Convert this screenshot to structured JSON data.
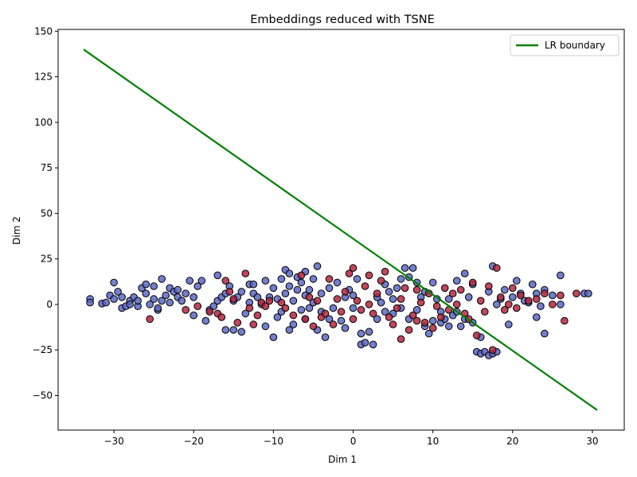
{
  "chart_data": {
    "type": "scatter",
    "title": "Embeddings reduced with TSNE",
    "xlabel": "Dim 1",
    "ylabel": "Dim 2",
    "xlim": [
      -37,
      34
    ],
    "ylim": [
      -69,
      151
    ],
    "xticks": [
      -30,
      -20,
      -10,
      0,
      10,
      20,
      30
    ],
    "yticks": [
      -50,
      -25,
      0,
      25,
      50,
      75,
      100,
      125,
      150
    ],
    "grid": false,
    "legend_position": "top-right",
    "legend": [
      {
        "label": "LR boundary",
        "color": "#008000"
      }
    ],
    "boundary_line": {
      "name": "LR boundary",
      "x": [
        -33.8,
        30.6
      ],
      "y": [
        140,
        -58
      ],
      "color": "#008000"
    },
    "class_colors": {
      "blue": "#5a67c4",
      "red": "#b3273f"
    },
    "series": [
      {
        "color_key": "blue",
        "points": [
          [
            -33,
            3
          ],
          [
            -33,
            1
          ],
          [
            -31.5,
            0.5
          ],
          [
            -31,
            1
          ],
          [
            -30.5,
            5
          ],
          [
            -30,
            3
          ],
          [
            -30,
            12
          ],
          [
            -29.5,
            7
          ],
          [
            -29,
            4
          ],
          [
            -29,
            -2
          ],
          [
            -28.5,
            -1
          ],
          [
            -28,
            2
          ],
          [
            -28,
            0
          ],
          [
            -27.5,
            4
          ],
          [
            -27,
            -1
          ],
          [
            -27,
            2
          ],
          [
            -26.5,
            9
          ],
          [
            -26,
            6
          ],
          [
            -26,
            11
          ],
          [
            -25.5,
            0
          ],
          [
            -25,
            10
          ],
          [
            -25,
            3
          ],
          [
            -24.5,
            -3
          ],
          [
            -24.5,
            -2
          ],
          [
            -24,
            14
          ],
          [
            -24,
            2
          ],
          [
            -23.5,
            5
          ],
          [
            -23,
            9
          ],
          [
            -23,
            1
          ],
          [
            -22.5,
            7
          ],
          [
            -22,
            4
          ],
          [
            -22,
            8
          ],
          [
            -21.5,
            2
          ],
          [
            -21,
            6
          ],
          [
            -20.5,
            13
          ],
          [
            -20,
            4
          ],
          [
            -20,
            -6
          ],
          [
            -19.5,
            10
          ],
          [
            -19,
            13
          ],
          [
            -18.5,
            -9
          ],
          [
            -18,
            -3
          ],
          [
            -17.5,
            -1
          ],
          [
            -17,
            2
          ],
          [
            -17,
            16
          ],
          [
            -16.5,
            4
          ],
          [
            -16,
            -14
          ],
          [
            -16,
            6
          ],
          [
            -15.5,
            10
          ],
          [
            -15,
            -14
          ],
          [
            -15,
            2
          ],
          [
            -14.5,
            4
          ],
          [
            -14,
            -15
          ],
          [
            -14,
            7
          ],
          [
            -13.5,
            -5
          ],
          [
            -13,
            1
          ],
          [
            -13,
            11
          ],
          [
            -12.5,
            6
          ],
          [
            -12.5,
            11
          ],
          [
            -12,
            4
          ],
          [
            -11.5,
            0
          ],
          [
            -11,
            -12
          ],
          [
            -11,
            13
          ],
          [
            -10.5,
            4
          ],
          [
            -10,
            9
          ],
          [
            -10,
            -18
          ],
          [
            -9.5,
            -7
          ],
          [
            -9.5,
            3
          ],
          [
            -9,
            -4
          ],
          [
            -9,
            14
          ],
          [
            -8.5,
            19
          ],
          [
            -8.5,
            6
          ],
          [
            -8,
            10
          ],
          [
            -8,
            17
          ],
          [
            -8,
            -14
          ],
          [
            -7.5,
            2
          ],
          [
            -7.5,
            -11
          ],
          [
            -7,
            8
          ],
          [
            -7,
            15
          ],
          [
            -6.5,
            -3
          ],
          [
            -6.5,
            12
          ],
          [
            -6,
            18
          ],
          [
            -6,
            5
          ],
          [
            -6,
            -8
          ],
          [
            -5.5,
            -2
          ],
          [
            -5.5,
            8
          ],
          [
            -5,
            1
          ],
          [
            -5,
            14
          ],
          [
            -4.5,
            -14
          ],
          [
            -4.5,
            21
          ],
          [
            -4,
            6
          ],
          [
            -4,
            -4
          ],
          [
            -3.5,
            -18
          ],
          [
            -3,
            -8
          ],
          [
            -3,
            9
          ],
          [
            -2.5,
            -2
          ],
          [
            -2,
            12
          ],
          [
            -1.5,
            -9
          ],
          [
            -1,
            4
          ],
          [
            -1,
            -13
          ],
          [
            -0.5,
            8
          ],
          [
            0,
            -2
          ],
          [
            0,
            5
          ],
          [
            0.5,
            14
          ],
          [
            1,
            -16
          ],
          [
            1,
            -22
          ],
          [
            1.5,
            -21
          ],
          [
            2,
            -15
          ],
          [
            2.5,
            -22
          ],
          [
            3,
            -8
          ],
          [
            3,
            4
          ],
          [
            3.5,
            1
          ],
          [
            4,
            -4
          ],
          [
            4,
            11
          ],
          [
            4.5,
            7
          ],
          [
            5,
            -5
          ],
          [
            5,
            3
          ],
          [
            5.5,
            9
          ],
          [
            6,
            14
          ],
          [
            6,
            -2
          ],
          [
            6.5,
            20
          ],
          [
            7,
            -8
          ],
          [
            7,
            15
          ],
          [
            7.5,
            20
          ],
          [
            8,
            12
          ],
          [
            8,
            -3
          ],
          [
            8.5,
            4
          ],
          [
            9,
            7
          ],
          [
            9,
            -12
          ],
          [
            9.5,
            -16
          ],
          [
            10,
            -9
          ],
          [
            10,
            12
          ],
          [
            10.5,
            3
          ],
          [
            11,
            -10
          ],
          [
            11,
            -4
          ],
          [
            11.5,
            -8
          ],
          [
            12,
            3
          ],
          [
            12,
            -12
          ],
          [
            12.5,
            -6
          ],
          [
            13,
            13
          ],
          [
            13,
            -4
          ],
          [
            13.5,
            -12
          ],
          [
            14,
            -8
          ],
          [
            14,
            17
          ],
          [
            14.5,
            4
          ],
          [
            15,
            -10
          ],
          [
            15,
            11
          ],
          [
            15.5,
            -26
          ],
          [
            16,
            -27
          ],
          [
            16,
            -18
          ],
          [
            16.5,
            -26
          ],
          [
            17,
            -28
          ],
          [
            17,
            7
          ],
          [
            17.5,
            -27
          ],
          [
            17.5,
            21
          ],
          [
            18,
            -26
          ],
          [
            18,
            0
          ],
          [
            18.5,
            3
          ],
          [
            19,
            8
          ],
          [
            19.5,
            -11
          ],
          [
            20,
            4
          ],
          [
            20.5,
            13
          ],
          [
            21,
            6
          ],
          [
            21.5,
            2
          ],
          [
            22,
            1
          ],
          [
            22.5,
            11
          ],
          [
            23,
            -7
          ],
          [
            23,
            6
          ],
          [
            23.5,
            -1
          ],
          [
            24,
            8
          ],
          [
            24,
            -16
          ],
          [
            25,
            5
          ],
          [
            26,
            16
          ],
          [
            26,
            0
          ],
          [
            29,
            6
          ],
          [
            29.5,
            6
          ]
        ]
      },
      {
        "color_key": "red",
        "points": [
          [
            -25.5,
            -8
          ],
          [
            -21,
            -3
          ],
          [
            -19.5,
            -1
          ],
          [
            -18,
            -4
          ],
          [
            -17,
            -5
          ],
          [
            -16.5,
            -7
          ],
          [
            -16,
            13
          ],
          [
            -15.5,
            7
          ],
          [
            -15,
            3
          ],
          [
            -14.5,
            -10
          ],
          [
            -13.5,
            17
          ],
          [
            -13,
            -2
          ],
          [
            -12.5,
            -11
          ],
          [
            -12,
            -6
          ],
          [
            -11.5,
            1
          ],
          [
            -11,
            -1
          ],
          [
            -10.5,
            2
          ],
          [
            -9,
            1
          ],
          [
            -8.5,
            -2
          ],
          [
            -7.5,
            -6
          ],
          [
            -6.5,
            16
          ],
          [
            -6,
            -8
          ],
          [
            -5.5,
            4
          ],
          [
            -5,
            -12
          ],
          [
            -4.5,
            2
          ],
          [
            -4,
            -7
          ],
          [
            -3.5,
            -5
          ],
          [
            -3,
            14
          ],
          [
            -2.5,
            -11
          ],
          [
            -2,
            3
          ],
          [
            -1.5,
            -4
          ],
          [
            -1,
            7
          ],
          [
            -0.5,
            17
          ],
          [
            0,
            20
          ],
          [
            0,
            -8
          ],
          [
            0.5,
            2
          ],
          [
            1,
            -3
          ],
          [
            1.5,
            10
          ],
          [
            2,
            0
          ],
          [
            2,
            16
          ],
          [
            2.5,
            -5
          ],
          [
            3,
            6
          ],
          [
            3.5,
            13
          ],
          [
            4,
            18
          ],
          [
            4.5,
            -7
          ],
          [
            5,
            -11
          ],
          [
            5.5,
            -2
          ],
          [
            6,
            -19
          ],
          [
            6,
            3
          ],
          [
            6.5,
            9
          ],
          [
            7,
            -14
          ],
          [
            7.5,
            -6
          ],
          [
            8,
            8
          ],
          [
            8,
            -9
          ],
          [
            8.5,
            1
          ],
          [
            9,
            -10
          ],
          [
            9.5,
            6
          ],
          [
            10,
            -13
          ],
          [
            10.5,
            -1
          ],
          [
            11,
            -7
          ],
          [
            11.5,
            9
          ],
          [
            12,
            -3
          ],
          [
            12.5,
            6
          ],
          [
            13,
            0
          ],
          [
            13.5,
            8
          ],
          [
            14,
            -5
          ],
          [
            14.5,
            -8
          ],
          [
            15,
            12
          ],
          [
            15.5,
            -17
          ],
          [
            16,
            2
          ],
          [
            16.5,
            -4
          ],
          [
            17,
            10
          ],
          [
            17.5,
            -25
          ],
          [
            18,
            20
          ],
          [
            18.5,
            4
          ],
          [
            19,
            -3
          ],
          [
            19.5,
            0
          ],
          [
            20,
            9
          ],
          [
            20.5,
            -2
          ],
          [
            21,
            5
          ],
          [
            22,
            2
          ],
          [
            23,
            3
          ],
          [
            24,
            6
          ],
          [
            25,
            0
          ],
          [
            26,
            5
          ],
          [
            26.5,
            -9
          ],
          [
            28,
            6
          ]
        ]
      }
    ]
  }
}
